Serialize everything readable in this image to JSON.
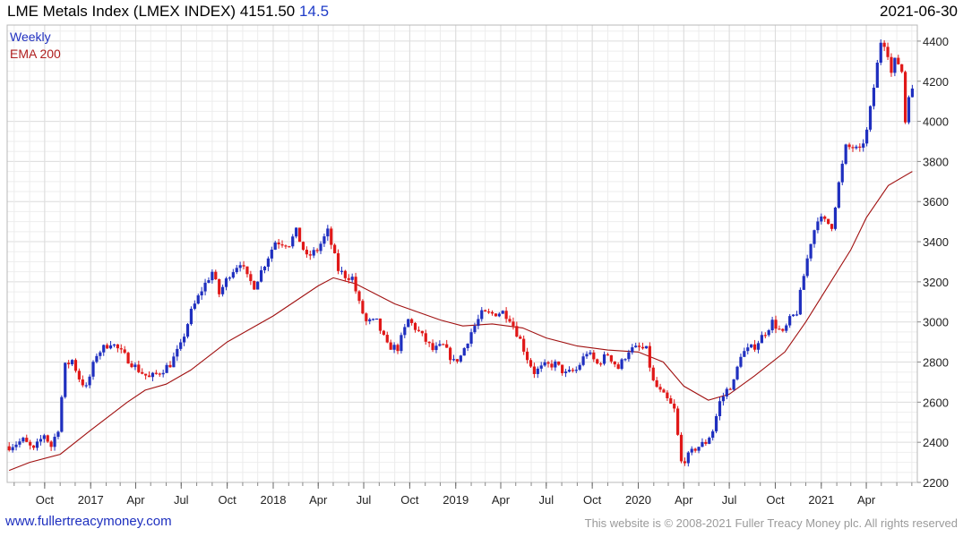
{
  "header": {
    "title": "LME Metals Index (LMEX INDEX)",
    "last_value": "4151.50",
    "change": "14.5",
    "date": "2021-06-30"
  },
  "footer": {
    "website": "www.fullertreacymoney.com",
    "copyright": "This website is © 2008-2021 Fuller Treacy Money plc. All rights reserved"
  },
  "colors": {
    "up_bar": "#1f2fbf",
    "down_bar": "#e01818",
    "ema": "#a01010",
    "grid": "#dcdcdc",
    "frame": "#b8b8b8"
  },
  "chart_data": {
    "type": "ohlc",
    "period": "Weekly",
    "legend": [
      "Weekly",
      "EMA 200"
    ],
    "legend_placement": "top-left",
    "y_axis_side": "right",
    "ylim": [
      2200,
      4480
    ],
    "y_ticks": [
      2200,
      2400,
      2600,
      2800,
      3000,
      3200,
      3400,
      3600,
      3800,
      4000,
      4200,
      4400
    ],
    "x_tick_labels": [
      {
        "date": "2016-10-01",
        "label": "Oct"
      },
      {
        "date": "2017-01-01",
        "label": "2017"
      },
      {
        "date": "2017-04-01",
        "label": "Apr"
      },
      {
        "date": "2017-07-01",
        "label": "Jul"
      },
      {
        "date": "2017-10-01",
        "label": "Oct"
      },
      {
        "date": "2018-01-01",
        "label": "2018"
      },
      {
        "date": "2018-04-01",
        "label": "Apr"
      },
      {
        "date": "2018-07-01",
        "label": "Jul"
      },
      {
        "date": "2018-10-01",
        "label": "Oct"
      },
      {
        "date": "2019-01-01",
        "label": "2019"
      },
      {
        "date": "2019-04-01",
        "label": "Apr"
      },
      {
        "date": "2019-07-01",
        "label": "Jul"
      },
      {
        "date": "2019-10-01",
        "label": "Oct"
      },
      {
        "date": "2020-01-01",
        "label": "2020"
      },
      {
        "date": "2020-04-01",
        "label": "Apr"
      },
      {
        "date": "2020-07-01",
        "label": "Jul"
      },
      {
        "date": "2020-10-01",
        "label": "Oct"
      },
      {
        "date": "2021-01-01",
        "label": "2021"
      },
      {
        "date": "2021-04-01",
        "label": "Apr"
      }
    ],
    "x_start": "2016-07-18",
    "x_end": "2021-07-12",
    "series": [
      {
        "name": "Weekly",
        "anchors": [
          [
            "2016-07-22",
            2380
          ],
          [
            "2016-08-19",
            2410
          ],
          [
            "2016-09-09",
            2360
          ],
          [
            "2016-09-30",
            2440
          ],
          [
            "2016-10-14",
            2380
          ],
          [
            "2016-10-28",
            2470
          ],
          [
            "2016-11-11",
            2780
          ],
          [
            "2016-11-25",
            2810
          ],
          [
            "2016-12-09",
            2720
          ],
          [
            "2016-12-23",
            2670
          ],
          [
            "2017-01-13",
            2840
          ],
          [
            "2017-02-10",
            2900
          ],
          [
            "2017-03-10",
            2830
          ],
          [
            "2017-04-07",
            2760
          ],
          [
            "2017-04-28",
            2720
          ],
          [
            "2017-05-19",
            2750
          ],
          [
            "2017-06-09",
            2790
          ],
          [
            "2017-06-30",
            2880
          ],
          [
            "2017-07-21",
            3050
          ],
          [
            "2017-08-11",
            3160
          ],
          [
            "2017-09-01",
            3250
          ],
          [
            "2017-09-15",
            3140
          ],
          [
            "2017-10-06",
            3240
          ],
          [
            "2017-10-27",
            3300
          ],
          [
            "2017-11-10",
            3220
          ],
          [
            "2017-11-24",
            3180
          ],
          [
            "2017-12-15",
            3290
          ],
          [
            "2018-01-05",
            3400
          ],
          [
            "2018-02-02",
            3390
          ],
          [
            "2018-02-16",
            3450
          ],
          [
            "2018-03-09",
            3320
          ],
          [
            "2018-03-30",
            3360
          ],
          [
            "2018-04-20",
            3450
          ],
          [
            "2018-05-11",
            3260
          ],
          [
            "2018-05-25",
            3230
          ],
          [
            "2018-06-08",
            3220
          ],
          [
            "2018-06-22",
            3090
          ],
          [
            "2018-07-06",
            3000
          ],
          [
            "2018-07-27",
            3000
          ],
          [
            "2018-08-17",
            2880
          ],
          [
            "2018-09-07",
            2870
          ],
          [
            "2018-09-28",
            3010
          ],
          [
            "2018-10-19",
            2950
          ],
          [
            "2018-11-16",
            2860
          ],
          [
            "2018-12-07",
            2880
          ],
          [
            "2018-12-28",
            2800
          ],
          [
            "2019-01-11",
            2830
          ],
          [
            "2019-02-01",
            2950
          ],
          [
            "2019-02-22",
            3040
          ],
          [
            "2019-03-15",
            3040
          ],
          [
            "2019-04-05",
            3050
          ],
          [
            "2019-04-19",
            3020
          ],
          [
            "2019-05-10",
            2910
          ],
          [
            "2019-05-24",
            2820
          ],
          [
            "2019-06-07",
            2750
          ],
          [
            "2019-06-28",
            2780
          ],
          [
            "2019-07-19",
            2790
          ],
          [
            "2019-08-09",
            2740
          ],
          [
            "2019-08-30",
            2760
          ],
          [
            "2019-09-20",
            2850
          ],
          [
            "2019-10-11",
            2790
          ],
          [
            "2019-11-01",
            2840
          ],
          [
            "2019-11-22",
            2770
          ],
          [
            "2019-12-13",
            2860
          ],
          [
            "2020-01-03",
            2870
          ],
          [
            "2020-01-17",
            2860
          ],
          [
            "2020-01-31",
            2700
          ],
          [
            "2020-02-14",
            2650
          ],
          [
            "2020-02-28",
            2610
          ],
          [
            "2020-03-13",
            2560
          ],
          [
            "2020-03-27",
            2300
          ],
          [
            "2020-04-10",
            2330
          ],
          [
            "2020-04-24",
            2370
          ],
          [
            "2020-05-15",
            2400
          ],
          [
            "2020-05-29",
            2460
          ],
          [
            "2020-06-12",
            2600
          ],
          [
            "2020-06-26",
            2660
          ],
          [
            "2020-07-10",
            2700
          ],
          [
            "2020-07-24",
            2840
          ],
          [
            "2020-08-07",
            2860
          ],
          [
            "2020-08-21",
            2880
          ],
          [
            "2020-09-11",
            2950
          ],
          [
            "2020-09-25",
            3000
          ],
          [
            "2020-10-16",
            2940
          ],
          [
            "2020-10-30",
            3010
          ],
          [
            "2020-11-13",
            3050
          ],
          [
            "2020-11-27",
            3230
          ],
          [
            "2020-12-11",
            3400
          ],
          [
            "2020-12-25",
            3520
          ],
          [
            "2021-01-08",
            3500
          ],
          [
            "2021-01-22",
            3480
          ],
          [
            "2021-02-05",
            3690
          ],
          [
            "2021-02-19",
            3870
          ],
          [
            "2021-03-05",
            3870
          ],
          [
            "2021-03-19",
            3850
          ],
          [
            "2021-04-02",
            3950
          ],
          [
            "2021-04-16",
            4170
          ],
          [
            "2021-04-30",
            4400
          ],
          [
            "2021-05-07",
            4390
          ],
          [
            "2021-05-14",
            4340
          ],
          [
            "2021-05-21",
            4240
          ],
          [
            "2021-05-28",
            4300
          ],
          [
            "2021-06-04",
            4290
          ],
          [
            "2021-06-11",
            4250
          ],
          [
            "2021-06-18",
            4000
          ],
          [
            "2021-06-25",
            4140
          ],
          [
            "2021-07-02",
            4151.5
          ]
        ]
      },
      {
        "name": "EMA 200",
        "points": [
          [
            "2016-07-22",
            2260
          ],
          [
            "2016-09-01",
            2300
          ],
          [
            "2016-11-01",
            2340
          ],
          [
            "2017-01-01",
            2460
          ],
          [
            "2017-03-15",
            2600
          ],
          [
            "2017-04-20",
            2660
          ],
          [
            "2017-06-01",
            2690
          ],
          [
            "2017-07-20",
            2760
          ],
          [
            "2017-10-01",
            2900
          ],
          [
            "2018-01-01",
            3030
          ],
          [
            "2018-04-01",
            3180
          ],
          [
            "2018-05-01",
            3220
          ],
          [
            "2018-06-15",
            3190
          ],
          [
            "2018-09-01",
            3090
          ],
          [
            "2018-12-01",
            3010
          ],
          [
            "2019-01-15",
            2980
          ],
          [
            "2019-03-15",
            2990
          ],
          [
            "2019-05-15",
            2970
          ],
          [
            "2019-07-01",
            2920
          ],
          [
            "2019-09-01",
            2880
          ],
          [
            "2019-11-01",
            2860
          ],
          [
            "2020-01-01",
            2850
          ],
          [
            "2020-02-20",
            2800
          ],
          [
            "2020-04-01",
            2680
          ],
          [
            "2020-05-20",
            2610
          ],
          [
            "2020-07-01",
            2640
          ],
          [
            "2020-08-20",
            2730
          ],
          [
            "2020-10-20",
            2850
          ],
          [
            "2020-12-01",
            3000
          ],
          [
            "2021-01-15",
            3180
          ],
          [
            "2021-03-01",
            3360
          ],
          [
            "2021-04-01",
            3520
          ],
          [
            "2021-05-15",
            3680
          ],
          [
            "2021-07-02",
            3750
          ]
        ]
      }
    ]
  }
}
